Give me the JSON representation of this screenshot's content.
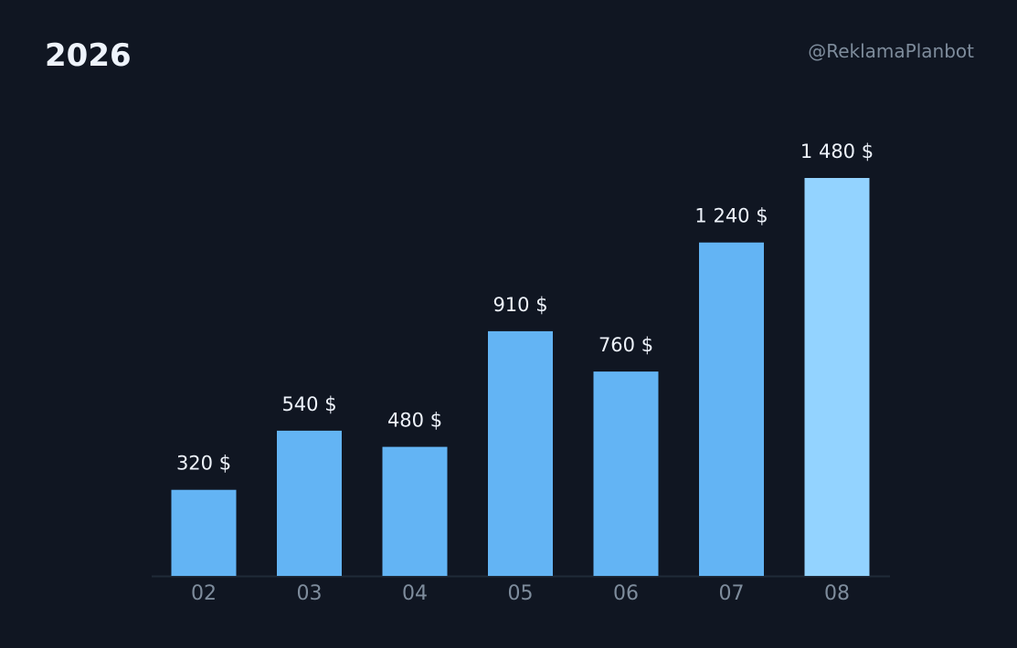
{
  "header": {
    "title": "2026",
    "handle": "@ReklamaPlanbot"
  },
  "colors": {
    "background": "#101622",
    "bar": "#63b4f4",
    "bar_highlight": "#93d3ff",
    "axis_line": "#1f2a38",
    "value_text": "#eef3fb",
    "tick_text": "#7e8c9c"
  },
  "chart_data": {
    "type": "bar",
    "categories": [
      "02",
      "03",
      "04",
      "05",
      "06",
      "07",
      "08"
    ],
    "values": [
      320,
      540,
      480,
      910,
      760,
      1240,
      1480
    ],
    "value_labels": [
      "320 $",
      "540 $",
      "480 $",
      "910 $",
      "760 $",
      "1 240 $",
      "1 480 $"
    ],
    "highlight_index": 6,
    "title": "2026",
    "xlabel": "",
    "ylabel": "",
    "ylim": [
      0,
      1480
    ],
    "grid": false,
    "legend": "none"
  }
}
